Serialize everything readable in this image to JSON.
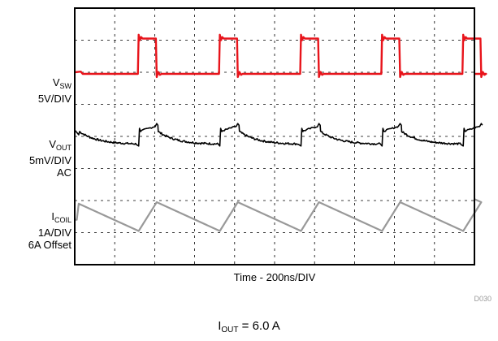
{
  "chart_data": {
    "type": "line",
    "title": "",
    "xlabel": "Time - 200ns/DIV",
    "grid": true,
    "divisions": {
      "x": 10,
      "y": 8
    },
    "x_unit": "div",
    "xlim": [
      0,
      10
    ],
    "ylim": [
      0,
      8
    ],
    "series": [
      {
        "label_main": "V",
        "label_sub": "SW",
        "label_lines": [
          "5V/DIV"
        ],
        "color": "#e8141b",
        "baseline_div": 5.95,
        "high_div": 7.05,
        "period_div": 2.03,
        "first_rise_div": 1.6,
        "high_width_div": 0.45
      },
      {
        "label_main": "V",
        "label_sub": "OUT",
        "label_lines": [
          "5mV/DIV",
          "AC"
        ],
        "color": "#000000",
        "baseline_div": 3.75,
        "spike_top_div": 4.4
      },
      {
        "label_main": "I",
        "label_sub": "COIL",
        "label_lines": [
          "1A/DIV",
          "6A Offset"
        ],
        "color": "#999999",
        "valley_div": 1.05,
        "peak_div": 1.95
      }
    ]
  },
  "figure_id": "D030",
  "caption": {
    "main": "I",
    "sub": "OUT",
    "rest": " = 6.0 A"
  }
}
